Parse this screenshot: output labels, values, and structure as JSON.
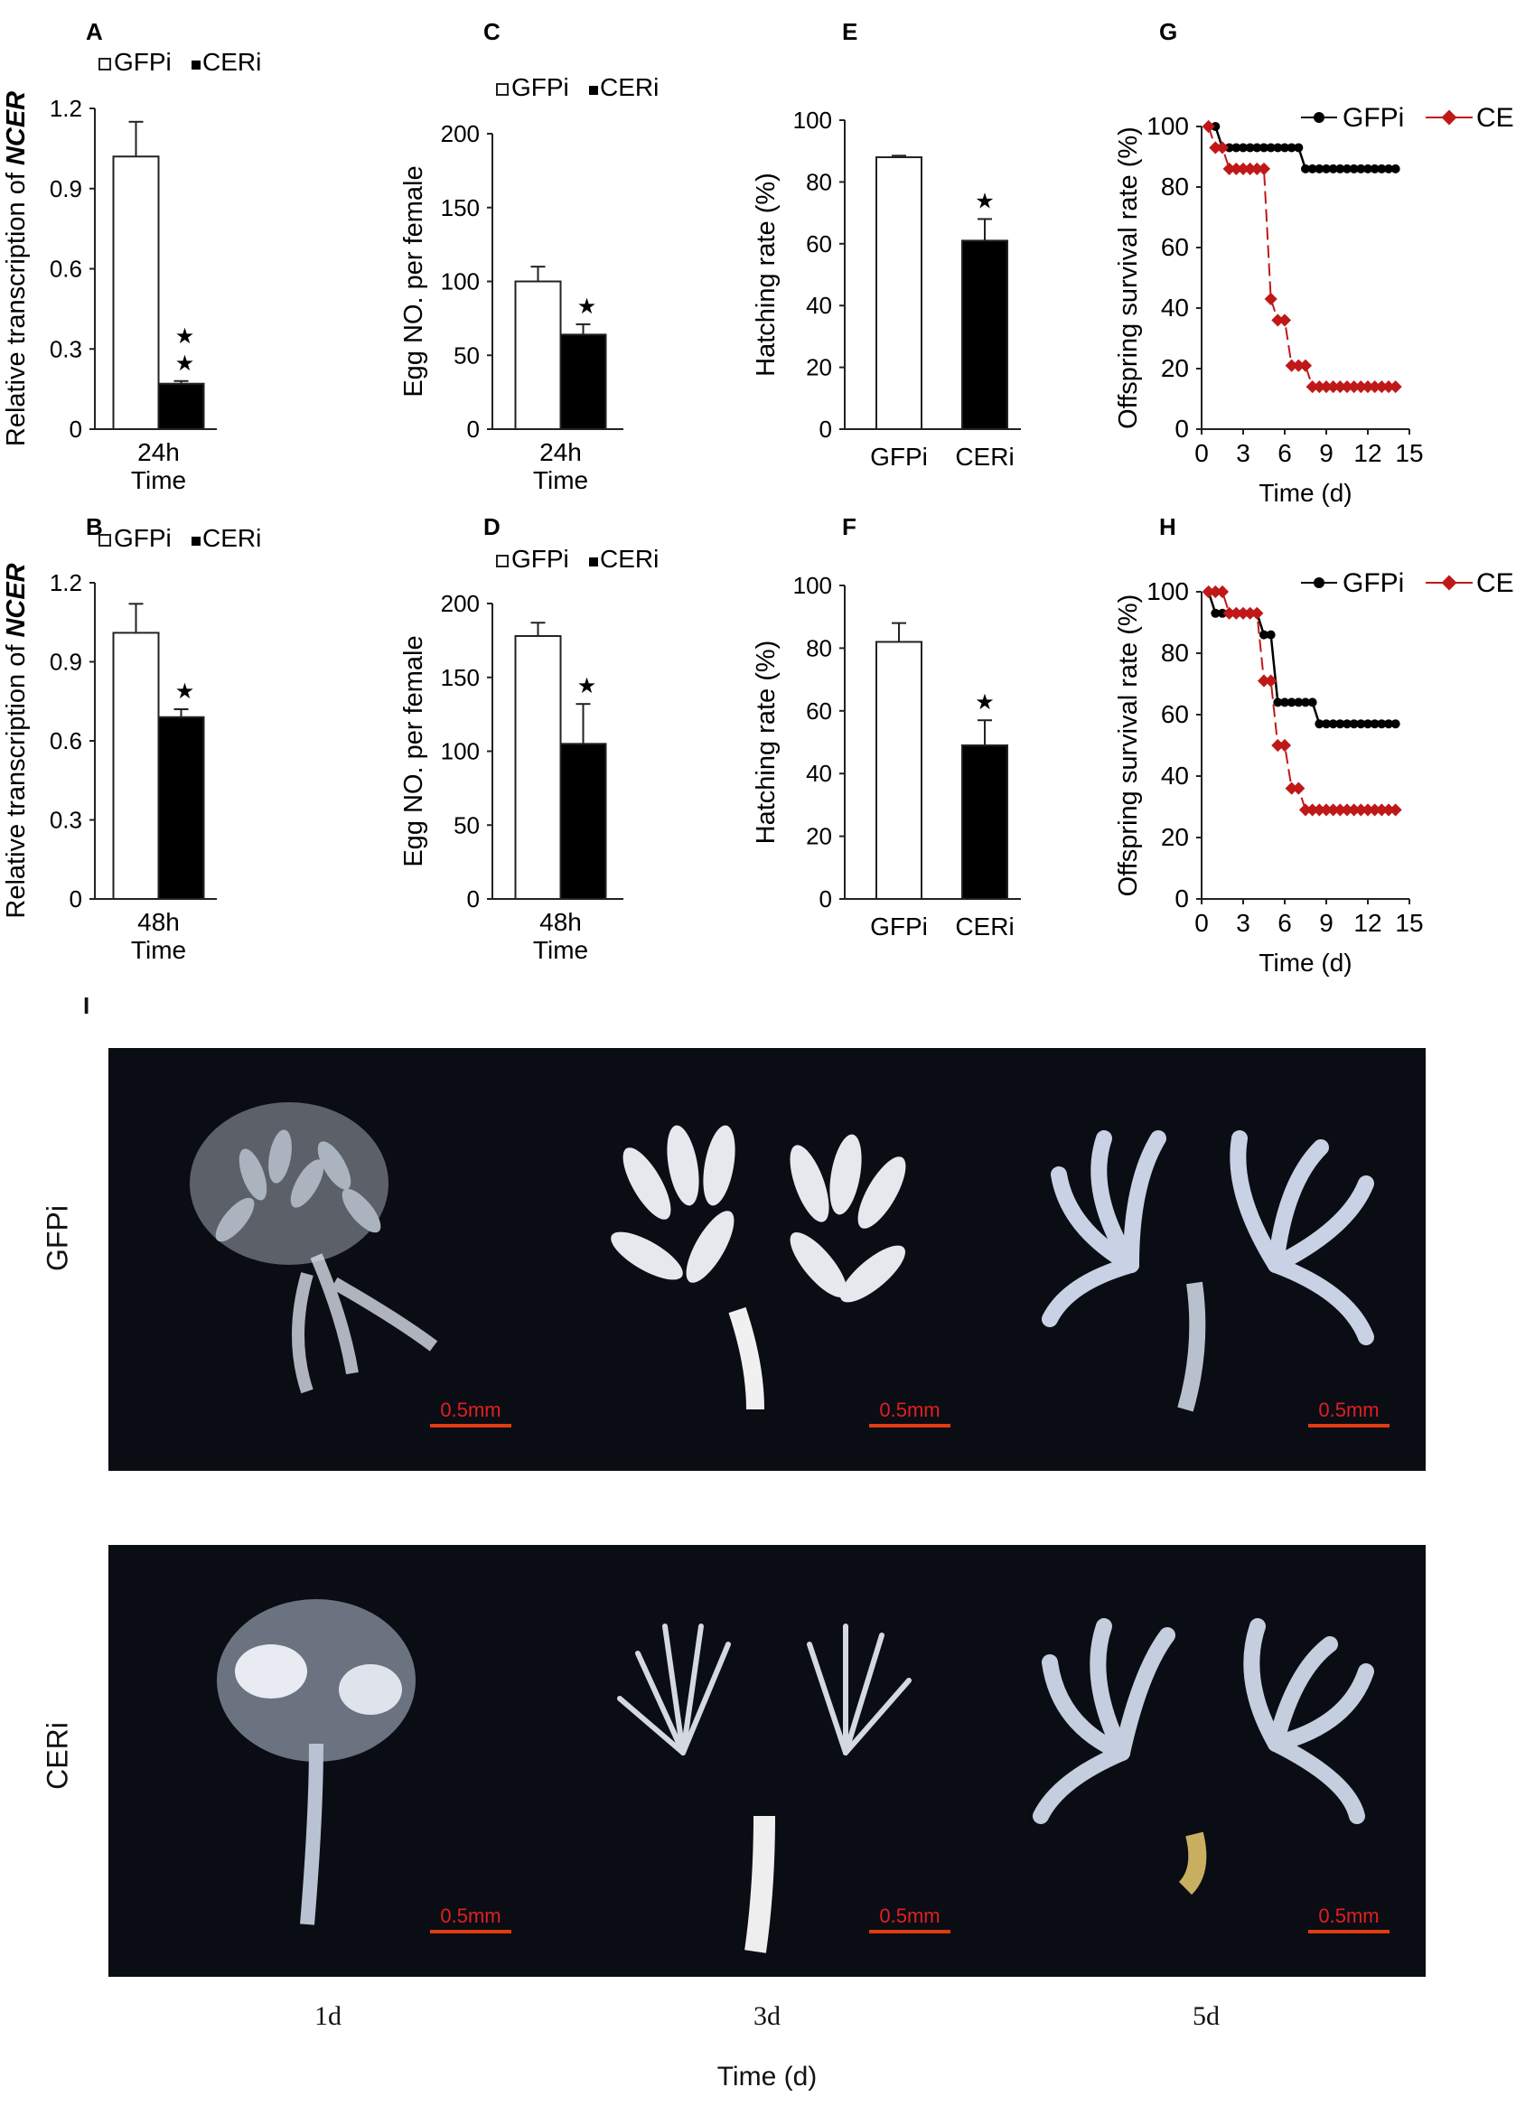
{
  "chart_data": [
    {
      "panel": "A",
      "type": "bar",
      "categories": [
        "24h"
      ],
      "xlabel": "Time",
      "ylabel": "Relative transcription of NCER",
      "ylabel_prefix": "Relative transcription of ",
      "ylabel_italic": "NCER",
      "ylim": [
        0,
        1.2
      ],
      "yticks": [
        "0",
        "0.3",
        "0.6",
        "0.9",
        "1.2"
      ],
      "legend": [
        "GFPi",
        "CERi"
      ],
      "legend_position": "top",
      "series": [
        {
          "name": "GFPi",
          "values": [
            1.02
          ],
          "error": [
            0.13
          ],
          "color": "#ffffff"
        },
        {
          "name": "CERi",
          "values": [
            0.17
          ],
          "error": [
            0.01
          ],
          "color": "#000000"
        }
      ],
      "annotation": "★\n★"
    },
    {
      "panel": "C",
      "type": "bar",
      "categories": [
        "24h"
      ],
      "xlabel": "Time",
      "ylabel": "Egg NO. per female",
      "ylim": [
        0,
        200
      ],
      "yticks": [
        "0",
        "50",
        "100",
        "150",
        "200"
      ],
      "legend": [
        "GFPi",
        "CERi"
      ],
      "legend_position": "top",
      "series": [
        {
          "name": "GFPi",
          "values": [
            100
          ],
          "error": [
            10
          ],
          "color": "#ffffff"
        },
        {
          "name": "CERi",
          "values": [
            64
          ],
          "error": [
            7
          ],
          "color": "#000000"
        }
      ],
      "annotation": "★"
    },
    {
      "panel": "E",
      "type": "bar",
      "categories": [
        "GFPi",
        "CERi"
      ],
      "ylabel": "Hatching rate (%)",
      "ylim": [
        0,
        100
      ],
      "yticks": [
        "0",
        "20",
        "40",
        "60",
        "80",
        "100"
      ],
      "values": [
        88,
        61
      ],
      "error": [
        0.5,
        7
      ],
      "colors": [
        "#ffffff",
        "#000000"
      ],
      "annotation": "★"
    },
    {
      "panel": "G",
      "type": "line",
      "xlabel": "Time (d)",
      "ylabel": "Offspring survival rate (%)",
      "xlim": [
        0,
        15
      ],
      "xticks": [
        "0",
        "3",
        "6",
        "9",
        "12",
        "15"
      ],
      "ylim": [
        0,
        100
      ],
      "yticks": [
        "0",
        "20",
        "40",
        "60",
        "80",
        "100"
      ],
      "legend": [
        "GFPi",
        "CERi"
      ],
      "legend_position": "top-right",
      "series": [
        {
          "name": "GFPi",
          "color": "#000000",
          "x": [
            0.5,
            1,
            1.5,
            2,
            2.5,
            3,
            3.5,
            4,
            4.5,
            5,
            5.5,
            6,
            6.5,
            7,
            7.5,
            8,
            8.5,
            9,
            9.5,
            10,
            10.5,
            11,
            11.5,
            12,
            12.5,
            13,
            13.5,
            14
          ],
          "y": [
            100,
            100,
            93,
            93,
            93,
            93,
            93,
            93,
            93,
            93,
            93,
            93,
            93,
            93,
            86,
            86,
            86,
            86,
            86,
            86,
            86,
            86,
            86,
            86,
            86,
            86,
            86,
            86
          ]
        },
        {
          "name": "CERi",
          "color": "#c01818",
          "x": [
            0.5,
            1,
            1.5,
            2,
            2.5,
            3,
            3.5,
            4,
            4.5,
            5,
            5.5,
            6,
            6.5,
            7,
            7.5,
            8,
            8.5,
            9,
            9.5,
            10,
            10.5,
            11,
            11.5,
            12,
            12.5,
            13,
            13.5,
            14
          ],
          "y": [
            100,
            93,
            93,
            86,
            86,
            86,
            86,
            86,
            86,
            43,
            36,
            36,
            21,
            21,
            21,
            14,
            14,
            14,
            14,
            14,
            14,
            14,
            14,
            14,
            14,
            14,
            14,
            14
          ]
        }
      ]
    },
    {
      "panel": "B",
      "type": "bar",
      "categories": [
        "48h"
      ],
      "xlabel": "Time",
      "ylabel": "Relative transcription of NCER",
      "ylabel_prefix": "Relative transcription of ",
      "ylabel_italic": "NCER",
      "ylim": [
        0,
        1.2
      ],
      "yticks": [
        "0",
        "0.3",
        "0.6",
        "0.9",
        "1.2"
      ],
      "legend": [
        "GFPi",
        "CERi"
      ],
      "legend_position": "top",
      "series": [
        {
          "name": "GFPi",
          "values": [
            1.01
          ],
          "error": [
            0.11
          ],
          "color": "#ffffff"
        },
        {
          "name": "CERi",
          "values": [
            0.69
          ],
          "error": [
            0.03
          ],
          "color": "#000000"
        }
      ],
      "annotation": "★"
    },
    {
      "panel": "D",
      "type": "bar",
      "categories": [
        "48h"
      ],
      "xlabel": "Time",
      "ylabel": "Egg NO. per female",
      "ylim": [
        0,
        200
      ],
      "yticks": [
        "0",
        "50",
        "100",
        "150",
        "200"
      ],
      "legend": [
        "GFPi",
        "CERi"
      ],
      "legend_position": "top",
      "series": [
        {
          "name": "GFPi",
          "values": [
            178
          ],
          "error": [
            9
          ],
          "color": "#ffffff"
        },
        {
          "name": "CERi",
          "values": [
            105
          ],
          "error": [
            27
          ],
          "color": "#000000"
        }
      ],
      "annotation": "★"
    },
    {
      "panel": "F",
      "type": "bar",
      "categories": [
        "GFPi",
        "CERi"
      ],
      "ylabel": "Hatching rate (%)",
      "ylim": [
        0,
        100
      ],
      "yticks": [
        "0",
        "20",
        "40",
        "60",
        "80",
        "100"
      ],
      "values": [
        82,
        49
      ],
      "error": [
        6,
        8
      ],
      "colors": [
        "#ffffff",
        "#000000"
      ],
      "annotation": "★"
    },
    {
      "panel": "H",
      "type": "line",
      "xlabel": "Time (d)",
      "ylabel": "Offspring survival rate (%)",
      "xlim": [
        0,
        15
      ],
      "xticks": [
        "0",
        "3",
        "6",
        "9",
        "12",
        "15"
      ],
      "ylim": [
        0,
        100
      ],
      "yticks": [
        "0",
        "20",
        "40",
        "60",
        "80",
        "100"
      ],
      "legend": [
        "GFPi",
        "CERi"
      ],
      "legend_position": "top-right",
      "series": [
        {
          "name": "GFPi",
          "color": "#000000",
          "x": [
            0.5,
            1,
            1.5,
            2,
            2.5,
            3,
            3.5,
            4,
            4.5,
            5,
            5.5,
            6,
            6.5,
            7,
            7.5,
            8,
            8.5,
            9,
            9.5,
            10,
            10.5,
            11,
            11.5,
            12,
            12.5,
            13,
            13.5,
            14
          ],
          "y": [
            100,
            93,
            93,
            93,
            93,
            93,
            93,
            93,
            86,
            86,
            64,
            64,
            64,
            64,
            64,
            64,
            57,
            57,
            57,
            57,
            57,
            57,
            57,
            57,
            57,
            57,
            57,
            57
          ]
        },
        {
          "name": "CERi",
          "color": "#c01818",
          "x": [
            0.5,
            1,
            1.5,
            2,
            2.5,
            3,
            3.5,
            4,
            4.5,
            5,
            5.5,
            6,
            6.5,
            7,
            7.5,
            8,
            8.5,
            9,
            9.5,
            10,
            10.5,
            11,
            11.5,
            12,
            12.5,
            13,
            13.5,
            14
          ],
          "y": [
            100,
            100,
            100,
            93,
            93,
            93,
            93,
            93,
            71,
            71,
            50,
            50,
            36,
            36,
            29,
            29,
            29,
            29,
            29,
            29,
            29,
            29,
            29,
            29,
            29,
            29,
            29,
            29
          ]
        }
      ]
    }
  ],
  "panel_I": {
    "label": "I",
    "rows": [
      "GFPi",
      "CERi"
    ],
    "columns": [
      "1d",
      "3d",
      "5d"
    ],
    "xlabel": "Time (d)",
    "scale_bar": "0.5mm"
  }
}
